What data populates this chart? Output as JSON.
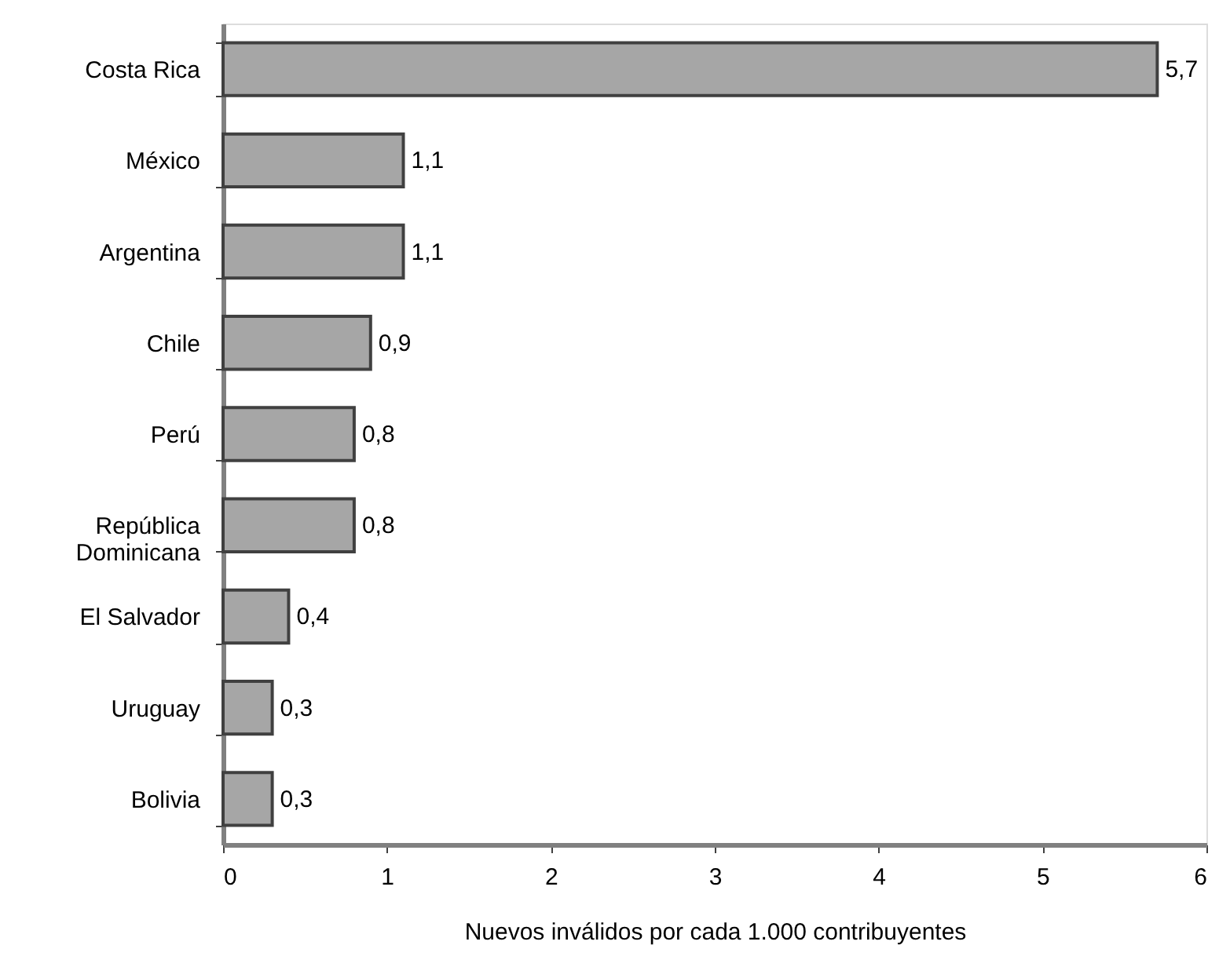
{
  "chart_data": {
    "type": "bar",
    "orientation": "horizontal",
    "xlabel": "Nuevos inválidos por cada 1.000 contribuyentes",
    "categories": [
      "Costa Rica",
      "México",
      "Argentina",
      "Chile",
      "Perú",
      "República\nDominicana",
      "El Salvador",
      "Uruguay",
      "Bolivia"
    ],
    "values": [
      5.7,
      1.1,
      1.1,
      0.9,
      0.8,
      0.8,
      0.4,
      0.3,
      0.3
    ],
    "value_labels": [
      "5,7",
      "1,1",
      "1,1",
      "0,9",
      "0,8",
      "0,8",
      "0,4",
      "0,3",
      "0,3"
    ],
    "color": "#a6a6a6",
    "xlim": [
      0,
      6
    ],
    "xticks": [
      0,
      1,
      2,
      3,
      4,
      5,
      6
    ],
    "grid": false
  }
}
